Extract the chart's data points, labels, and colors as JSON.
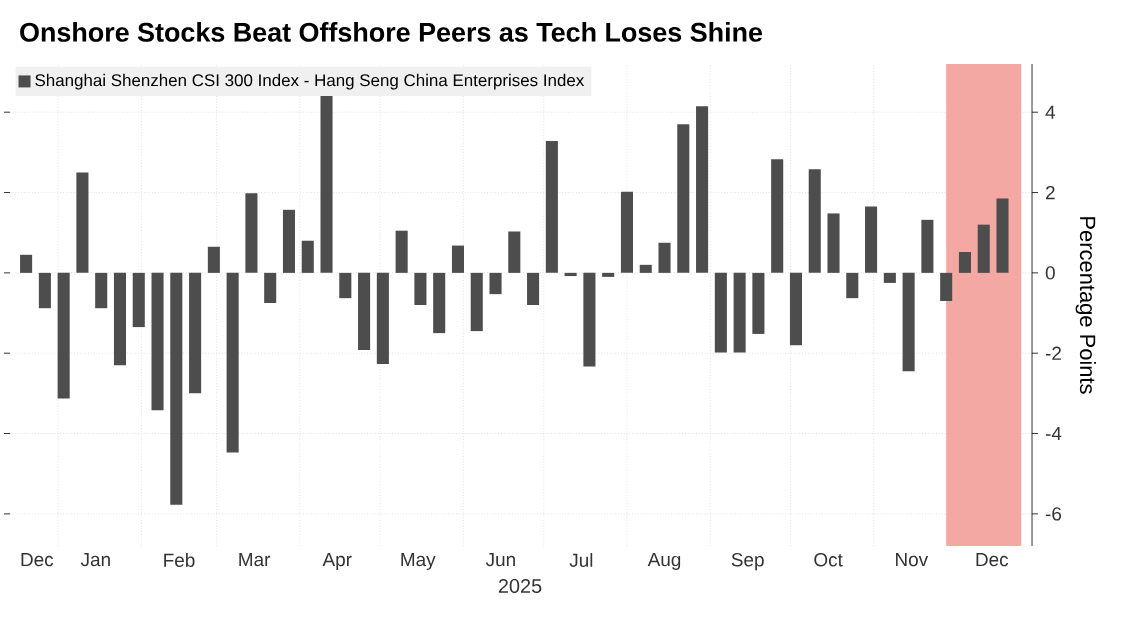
{
  "chart_data": {
    "type": "bar",
    "title": "Onshore Stocks Beat Offshore Peers as Tech Loses Shine",
    "ylabel": "Percentage Points",
    "annotations": [
      "2025"
    ],
    "x": [
      "2024-12-20",
      "2024-12-27",
      "2025-01-03",
      "2025-01-10",
      "2025-01-17",
      "2025-01-24",
      "2025-01-31",
      "2025-02-07",
      "2025-02-14",
      "2025-02-21",
      "2025-02-28",
      "2025-03-07",
      "2025-03-14",
      "2025-03-21",
      "2025-03-28",
      "2025-04-04",
      "2025-04-11",
      "2025-04-18",
      "2025-04-25",
      "2025-05-02",
      "2025-05-09",
      "2025-05-16",
      "2025-05-23",
      "2025-05-30",
      "2025-06-06",
      "2025-06-13",
      "2025-06-20",
      "2025-06-27",
      "2025-07-04",
      "2025-07-11",
      "2025-07-18",
      "2025-07-25",
      "2025-08-01",
      "2025-08-08",
      "2025-08-15",
      "2025-08-22",
      "2025-08-29",
      "2025-09-05",
      "2025-09-12",
      "2025-09-19",
      "2025-09-26",
      "2025-10-03",
      "2025-10-10",
      "2025-10-17",
      "2025-10-24",
      "2025-10-31",
      "2025-11-07",
      "2025-11-14",
      "2025-11-21",
      "2025-11-28",
      "2025-12-05",
      "2025-12-12",
      "2025-12-19"
    ],
    "series": [
      {
        "name": "Shanghai Shenzhen CSI 300 Index - Hang Seng China Enterprises Index",
        "color": "#4d4d4d",
        "values": [
          0.45,
          -0.88,
          -3.13,
          2.5,
          -0.88,
          -2.3,
          -1.35,
          -3.42,
          -5.77,
          -3.0,
          0.65,
          -4.47,
          1.98,
          -0.75,
          1.57,
          0.8,
          4.45,
          -0.63,
          -1.92,
          -2.27,
          1.05,
          -0.8,
          -1.5,
          0.68,
          -1.45,
          -0.53,
          1.03,
          -0.8,
          3.28,
          -0.08,
          -2.33,
          -0.1,
          2.02,
          0.2,
          0.75,
          3.7,
          4.15,
          -1.98,
          -1.98,
          -1.52,
          2.83,
          -1.8,
          2.58,
          1.48,
          -0.63,
          1.65,
          -0.25,
          -2.45,
          1.32,
          -0.7,
          0.52,
          1.2,
          1.85
        ]
      }
    ],
    "xlim": [
      "2024-12-14",
      "2025-12-30"
    ],
    "xticks": [
      {
        "value": "2024-12-24",
        "label": "Dec"
      },
      {
        "value": "2025-01-15",
        "label": "Jan"
      },
      {
        "value": "2025-02-15",
        "label": "Feb"
      },
      {
        "value": "2025-03-15",
        "label": "Mar"
      },
      {
        "value": "2025-04-15",
        "label": "Apr"
      },
      {
        "value": "2025-05-15",
        "label": "May"
      },
      {
        "value": "2025-06-15",
        "label": "Jun"
      },
      {
        "value": "2025-07-15",
        "label": "Jul"
      },
      {
        "value": "2025-08-15",
        "label": "Aug"
      },
      {
        "value": "2025-09-15",
        "label": "Sep"
      },
      {
        "value": "2025-10-15",
        "label": "Oct"
      },
      {
        "value": "2025-11-15",
        "label": "Nov"
      },
      {
        "value": "2025-12-15",
        "label": "Dec"
      },
      {
        "value": "2025-01-01",
        "label": null
      },
      {
        "value": "2025-02-01",
        "label": null
      },
      {
        "value": "2025-03-01",
        "label": null
      },
      {
        "value": "2025-04-01",
        "label": null
      },
      {
        "value": "2025-05-01",
        "label": null
      },
      {
        "value": "2025-06-01",
        "label": null
      },
      {
        "value": "2025-07-01",
        "label": null
      },
      {
        "value": "2025-08-01",
        "label": null
      },
      {
        "value": "2025-09-01",
        "label": null
      },
      {
        "value": "2025-10-01",
        "label": null
      },
      {
        "value": "2025-11-01",
        "label": null
      },
      {
        "value": "2025-12-01",
        "label": null
      }
    ],
    "ylim": [
      -6.8,
      5.2
    ],
    "yticks": [
      -6,
      -4,
      -2,
      0,
      2,
      4
    ],
    "bands": [
      {
        "axis": "x",
        "from": "2025-11-28",
        "to": "2025-12-26",
        "color": "#f3a8a3"
      }
    ],
    "grid": true,
    "legend": "top left"
  }
}
